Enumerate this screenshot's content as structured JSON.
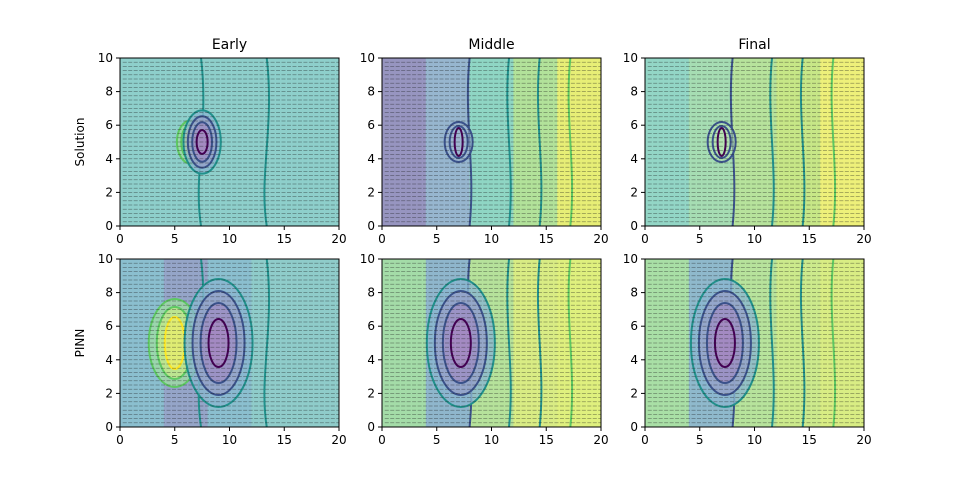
{
  "chart_data": {
    "type": "contour",
    "columns": [
      "Early",
      "Middle",
      "Final"
    ],
    "rows": [
      "Solution",
      "PINN"
    ],
    "xlim": [
      0,
      20
    ],
    "ylim": [
      0,
      10
    ],
    "xticks": [
      0,
      5,
      10,
      15,
      20
    ],
    "yticks": [
      0,
      2,
      4,
      6,
      8,
      10
    ],
    "colormap": [
      "#440154",
      "#3b528b",
      "#21918c",
      "#5ec962",
      "#fde725"
    ],
    "quiver_overlay": true,
    "panels": [
      {
        "row": "Solution",
        "column": "Early",
        "features": [
          {
            "x": 6.5,
            "y": 5,
            "kind": "high-peak"
          },
          {
            "x": 7.5,
            "y": 5,
            "kind": "low-peak"
          }
        ],
        "background_trend": "flat"
      },
      {
        "row": "Solution",
        "column": "Middle",
        "features": [
          {
            "x": 7,
            "y": 5,
            "kind": "obstacle"
          }
        ],
        "background_trend": "increasing with x"
      },
      {
        "row": "Solution",
        "column": "Final",
        "features": [
          {
            "x": 7,
            "y": 5,
            "kind": "obstacle"
          }
        ],
        "background_trend": "increasing with x"
      },
      {
        "row": "PINN",
        "column": "Early",
        "features": [
          {
            "x": 5,
            "y": 5,
            "kind": "high-peak"
          },
          {
            "x": 9,
            "y": 5,
            "kind": "low-peak"
          }
        ],
        "background_trend": "flat"
      },
      {
        "row": "PINN",
        "column": "Middle",
        "features": [
          {
            "x": 7.2,
            "y": 5,
            "kind": "low-peak"
          }
        ],
        "background_trend": "increasing with x"
      },
      {
        "row": "PINN",
        "column": "Final",
        "features": [
          {
            "x": 7.3,
            "y": 5,
            "kind": "low-peak"
          }
        ],
        "background_trend": "increasing with x"
      }
    ]
  }
}
